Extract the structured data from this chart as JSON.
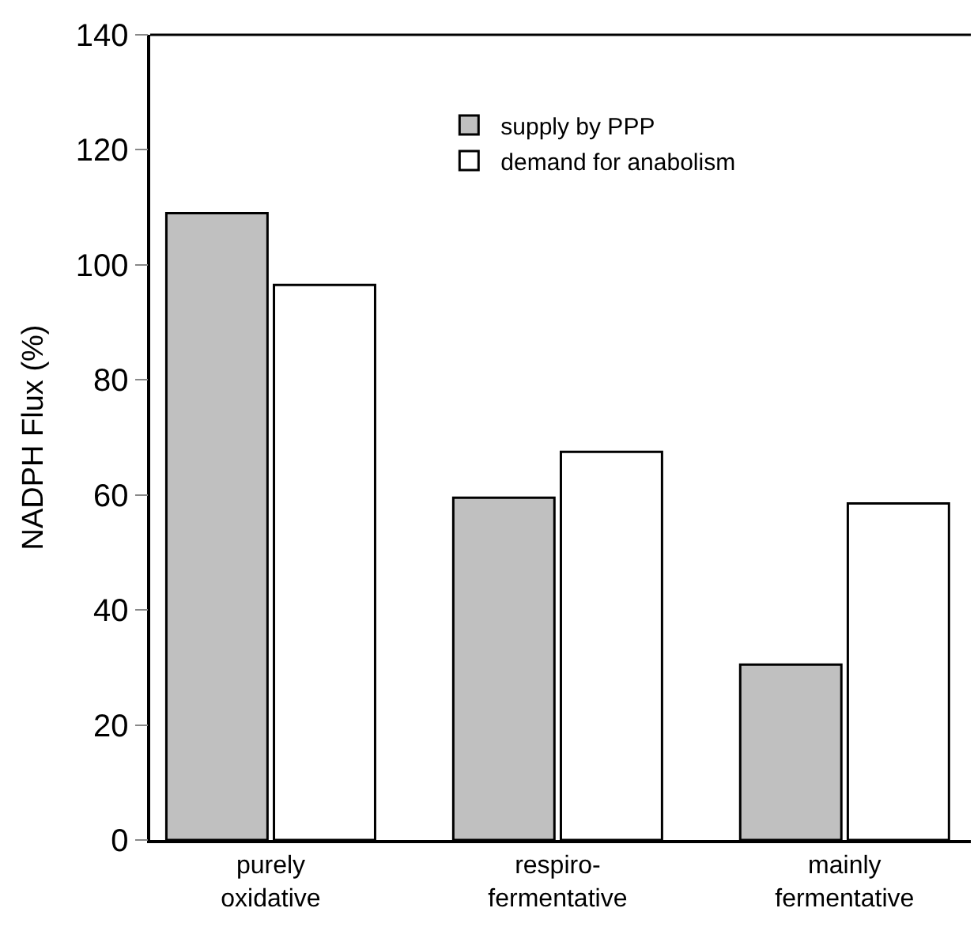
{
  "chart_data": {
    "type": "bar",
    "ylabel": "NADPH Flux (%)",
    "categories": [
      "purely\noxidative",
      "respiro-\nfermentative",
      "mainly\nfermentative"
    ],
    "series": [
      {
        "name": "supply by PPP",
        "color": "#c0c0c0",
        "values": [
          109,
          59.5,
          30.5
        ]
      },
      {
        "name": "demand for anabolism",
        "color": "#ffffff",
        "values": [
          96.5,
          67.5,
          58.5
        ]
      }
    ],
    "ylim": [
      0,
      140
    ],
    "yticks": [
      0,
      20,
      40,
      60,
      80,
      100,
      120,
      140
    ],
    "legend": "top"
  }
}
